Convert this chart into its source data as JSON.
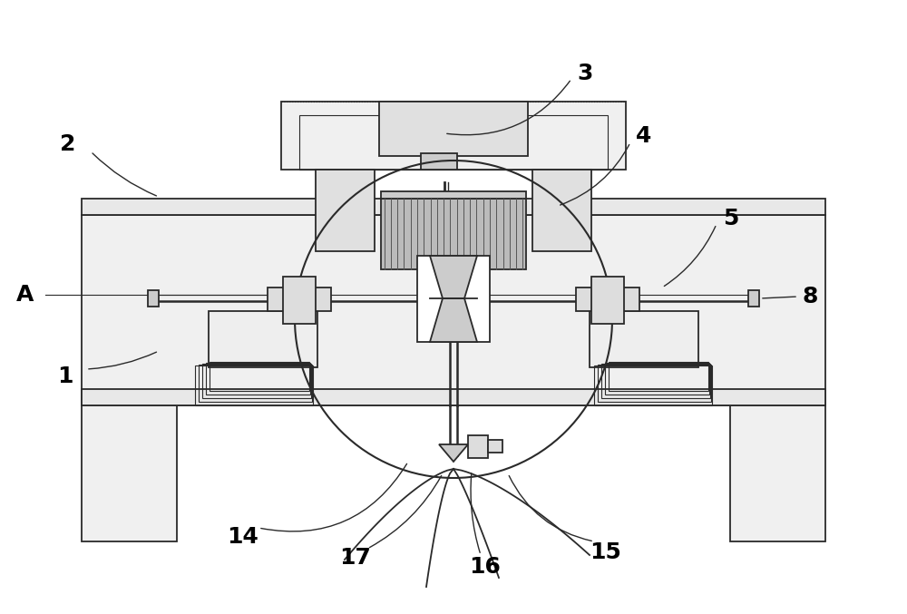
{
  "bg_color": "#ffffff",
  "line_color": "#2a2a2a",
  "gray_fill": "#d8d8d8",
  "light_fill": "#eeeeee",
  "mid_fill": "#c8c8c8",
  "dark_fill": "#aaaaaa",
  "fig_width": 10.0,
  "fig_height": 6.77,
  "lw_main": 1.3,
  "lw_thin": 0.8,
  "lw_thick": 1.8
}
